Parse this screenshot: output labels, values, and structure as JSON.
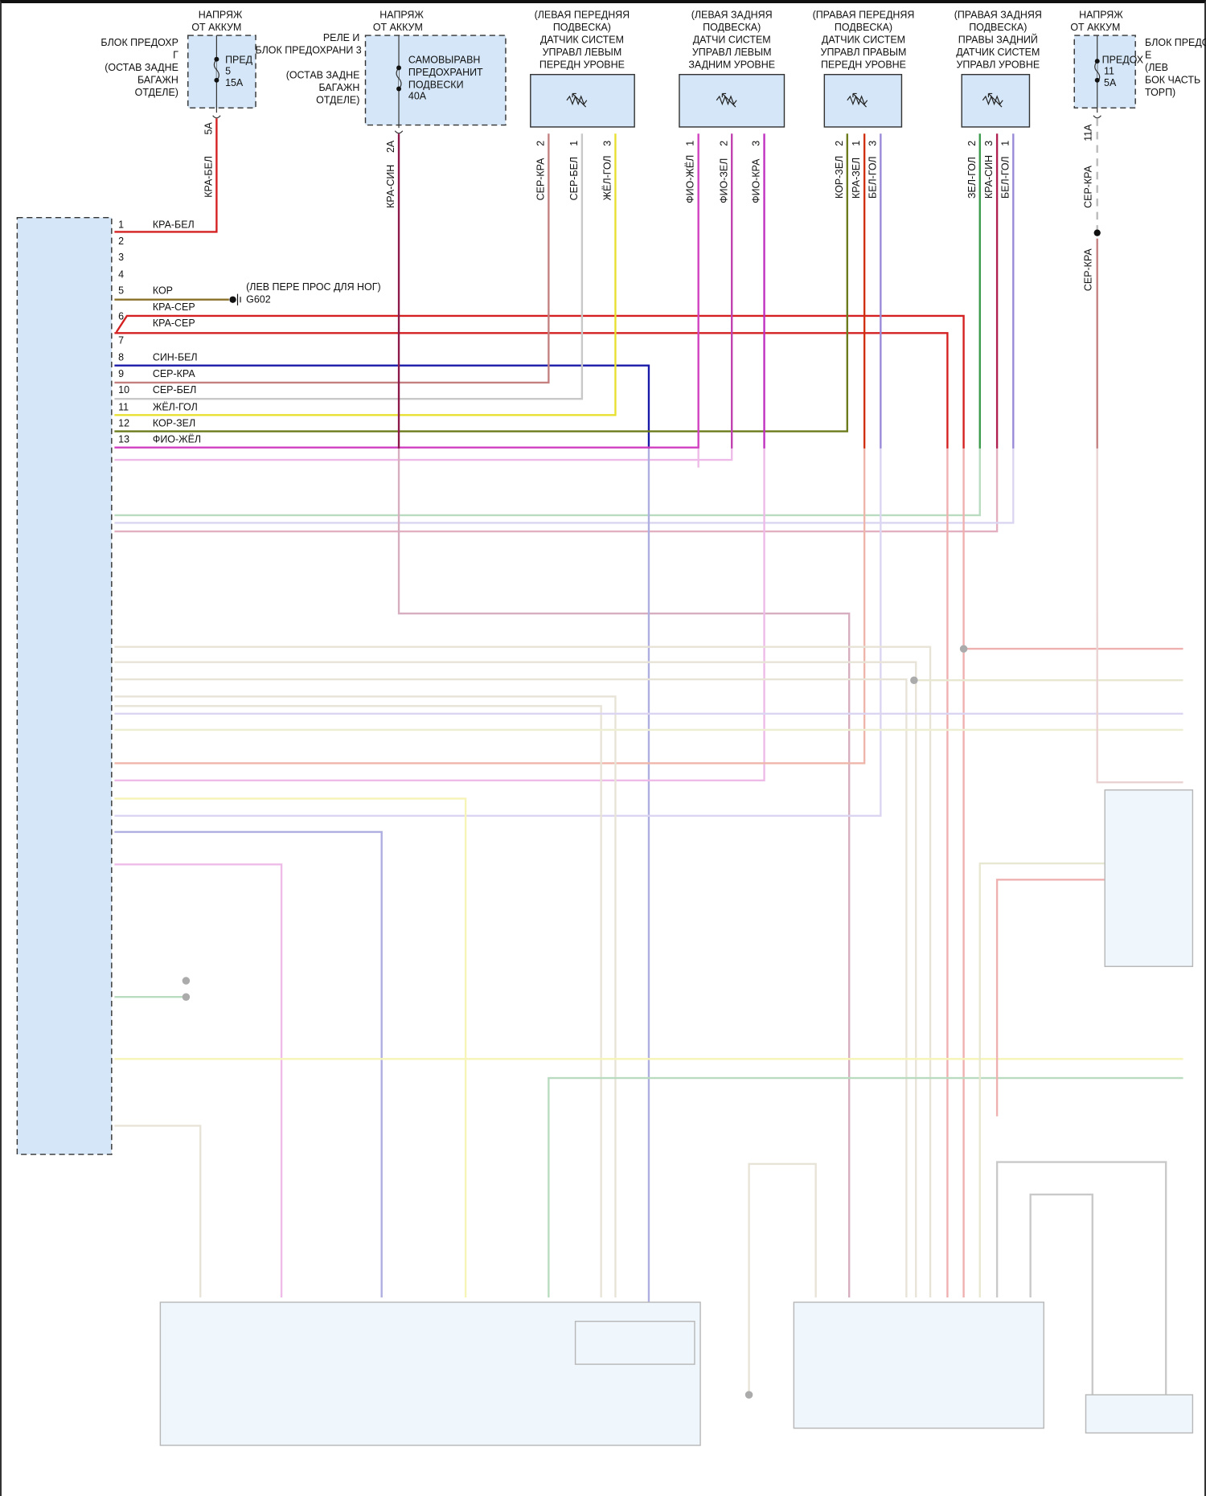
{
  "fuse_left": {
    "supply": [
      "НАПРЯЖ",
      "ОТ АККУМ"
    ],
    "block": [
      "БЛОК ПРЕДОХР",
      "Г",
      "(ОСТАВ ЗАДНЕ",
      "БАГАЖН",
      "ОТДЕЛЕ)"
    ],
    "fuse": [
      "ПРЕД",
      "5",
      "15А"
    ],
    "pin": "5А",
    "wire": "КРА-БЕЛ"
  },
  "fuse_mid": {
    "supply": [
      "НАПРЯЖ",
      "ОТ АККУМ"
    ],
    "block": [
      "РЕЛЕ И",
      "БЛОК ПРЕДОХРАНИ 3",
      "(ОСТАВ ЗАДНЕ",
      "БАГАЖН",
      "ОТДЕЛЕ)"
    ],
    "fuse": [
      "САМОВЫРАВН",
      "ПРЕДОХРАНИТ",
      "ПОДВЕСКИ",
      "40А"
    ],
    "pin": "2А",
    "wire": "КРА-СИН"
  },
  "fuse_right": {
    "supply": [
      "НАПРЯЖ",
      "ОТ АККУМ"
    ],
    "block": [
      "БЛОК ПРЕДО",
      "Е",
      "(ЛЕВ",
      "БОК ЧАСТЬ",
      "ТОРП)"
    ],
    "fuse": [
      "ПРЕДОХ",
      "11",
      "5А"
    ],
    "pin": "11А",
    "wire": "СЕР-КРА",
    "wire2": "СЕР-КРА"
  },
  "sensors": [
    {
      "title": [
        "(ЛЕВАЯ ПЕРЕДНЯЯ",
        "ПОДВЕСКА)",
        "ДАТЧИК СИСТЕМ",
        "УПРАВЛ ЛЕВЫМ",
        "ПЕРЕДН УРОВНЕ"
      ],
      "pins": [
        {
          "n": "2",
          "wire": "СЕР-КРА"
        },
        {
          "n": "1",
          "wire": "СЕР-БЕЛ"
        },
        {
          "n": "3",
          "wire": "ЖЁЛ-ГОЛ"
        }
      ]
    },
    {
      "title": [
        "(ЛЕВАЯ ЗАДНЯЯ",
        "ПОДВЕСКА)",
        "ДАТЧИ СИСТЕМ",
        "УПРАВЛ ЛЕВЫМ",
        "ЗАДНИМ УРОВНЕ"
      ],
      "pins": [
        {
          "n": "1",
          "wire": "ФИО-ЖЁЛ"
        },
        {
          "n": "2",
          "wire": "ФИО-ЗЕЛ"
        },
        {
          "n": "3",
          "wire": "ФИО-КРА"
        }
      ]
    },
    {
      "title": [
        "(ПРАВАЯ ПЕРЕДНЯЯ",
        "ПОДВЕСКА)",
        "ДАТЧИК СИСТЕМ",
        "УПРАВЛ ПРАВЫМ",
        "ПЕРЕДН УРОВНЕ"
      ],
      "pins": [
        {
          "n": "2",
          "wire": "КОР-ЗЕЛ"
        },
        {
          "n": "1",
          "wire": "КРА-ЗЕЛ"
        },
        {
          "n": "3",
          "wire": "БЕЛ-ГОЛ"
        }
      ]
    },
    {
      "title": [
        "(ПРАВАЯ ЗАДНЯЯ",
        "ПОДВЕСКА)",
        "ПРАВЫ ЗАДНИЙ",
        "ДАТЧИК СИСТЕМ",
        "УПРАВЛ УРОВНЕ"
      ],
      "pins": [
        {
          "n": "2",
          "wire": "ЗЕЛ-ГОЛ"
        },
        {
          "n": "3",
          "wire": "КРА-СИН"
        },
        {
          "n": "1",
          "wire": "БЕЛ-ГОЛ"
        }
      ]
    }
  ],
  "ecu_pins": [
    {
      "n": "1",
      "wire": "КРА-БЕЛ"
    },
    {
      "n": "2"
    },
    {
      "n": "3"
    },
    {
      "n": "4"
    },
    {
      "n": "5",
      "wire": "КОР"
    },
    {
      "n": "6",
      "wire": "КРА-СЕР"
    },
    {
      "n": "7",
      "wire": "КРА-СЕР"
    },
    {
      "n": "8",
      "wire": "СИН-БЕЛ"
    },
    {
      "n": "9",
      "wire": "СЕР-КРА"
    },
    {
      "n": "10",
      "wire": "СЕР-БЕЛ"
    },
    {
      "n": "11",
      "wire": "ЖЁЛ-ГОЛ"
    },
    {
      "n": "12",
      "wire": "КОР-ЗЕЛ"
    },
    {
      "n": "13",
      "wire": "ФИО-ЖЁЛ"
    }
  ],
  "ground": {
    "location": "(ЛЕВ ПЕРЕ ПРОС ДЛЯ НОГ)",
    "id": "G602"
  },
  "wire_colors": {
    "red": "#d42020",
    "brown": "#8a7028",
    "blue": "#1a1aa8",
    "grey_red": "#c48080",
    "grey_white": "#c0c0c0",
    "yellow": "#e8e030",
    "olive": "#6b7a1a",
    "magenta": "#d040c0",
    "red_blue": "#8b1a4a",
    "lavender": "#9a8ad8",
    "green": "#3a9a4a",
    "box_fill": "#d4e6f7"
  }
}
